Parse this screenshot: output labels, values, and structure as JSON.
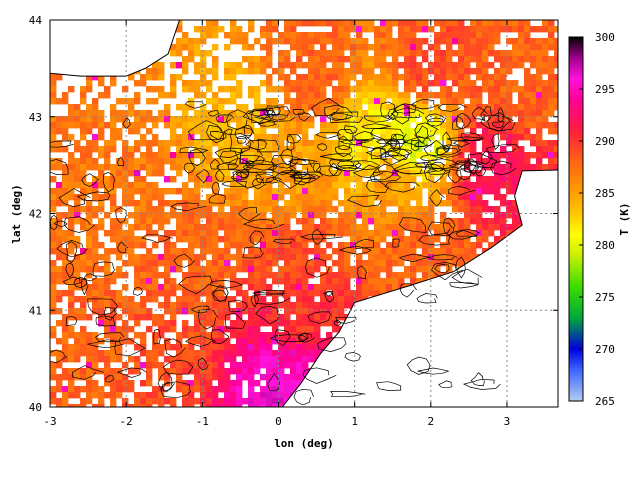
{
  "chart_data": {
    "type": "heatmap",
    "title": "",
    "xlabel": "lon (deg)",
    "ylabel": "lat (deg)",
    "xlim": [
      -3,
      3.67
    ],
    "ylim": [
      40,
      44
    ],
    "xticks": [
      -3,
      -2,
      -1,
      0,
      1,
      2,
      3
    ],
    "yticks": [
      40,
      41,
      42,
      43,
      44
    ],
    "grid": true,
    "overlay": "black topographic contour lines",
    "missing_color": "#ffffff",
    "colorbar": {
      "label": "T (K)",
      "min": 265,
      "max": 300,
      "ticks": [
        265,
        270,
        275,
        280,
        285,
        290,
        295,
        300
      ],
      "stops": [
        {
          "value": 265,
          "color": "#b4cdf0"
        },
        {
          "value": 268,
          "color": "#3c64ff"
        },
        {
          "value": 270,
          "color": "#0000dc"
        },
        {
          "value": 273,
          "color": "#00aa3c"
        },
        {
          "value": 276,
          "color": "#3cdc00"
        },
        {
          "value": 279,
          "color": "#c8f000"
        },
        {
          "value": 281,
          "color": "#ffff00"
        },
        {
          "value": 283,
          "color": "#ffc800"
        },
        {
          "value": 285,
          "color": "#ffa000"
        },
        {
          "value": 288,
          "color": "#ff6414"
        },
        {
          "value": 291,
          "color": "#ff1e3c"
        },
        {
          "value": 294,
          "color": "#ff0096"
        },
        {
          "value": 296,
          "color": "#ff14dc"
        },
        {
          "value": 298,
          "color": "#a0008c"
        },
        {
          "value": 300,
          "color": "#000000"
        }
      ]
    },
    "coastline": [
      [
        -3,
        43.45
      ],
      [
        -2.6,
        43.42
      ],
      [
        -2.0,
        43.42
      ],
      [
        -1.75,
        43.5
      ],
      [
        -1.45,
        43.65
      ],
      [
        -1.3,
        44.0
      ]
    ],
    "sea_polygon": [
      [
        -3,
        43.45
      ],
      [
        -2.6,
        43.42
      ],
      [
        -2.0,
        43.42
      ],
      [
        -1.75,
        43.5
      ],
      [
        -1.45,
        43.65
      ],
      [
        -1.3,
        44.0
      ],
      [
        -3,
        44.0
      ]
    ],
    "mediterranean_coast": [
      [
        3.67,
        42.45
      ],
      [
        3.2,
        42.44
      ],
      [
        3.1,
        42.18
      ],
      [
        3.2,
        41.88
      ],
      [
        2.8,
        41.65
      ],
      [
        2.3,
        41.4
      ],
      [
        1.7,
        41.25
      ],
      [
        1.0,
        41.08
      ],
      [
        0.8,
        40.78
      ],
      [
        0.55,
        40.55
      ],
      [
        0.3,
        40.25
      ],
      [
        0.05,
        40.0
      ]
    ],
    "mediterranean_polygon": [
      [
        3.67,
        42.45
      ],
      [
        3.2,
        42.44
      ],
      [
        3.1,
        42.18
      ],
      [
        3.2,
        41.88
      ],
      [
        2.8,
        41.65
      ],
      [
        2.3,
        41.4
      ],
      [
        1.7,
        41.25
      ],
      [
        1.0,
        41.08
      ],
      [
        0.8,
        40.78
      ],
      [
        0.55,
        40.55
      ],
      [
        0.3,
        40.25
      ],
      [
        0.05,
        40.0
      ],
      [
        3.67,
        40.0
      ]
    ],
    "temperature_anchors": [
      {
        "lon": 0.5,
        "lat": 43.5,
        "T": 288
      },
      {
        "lon": 2.0,
        "lat": 43.5,
        "T": 289
      },
      {
        "lon": 3.2,
        "lat": 43.3,
        "T": 288
      },
      {
        "lon": 1.2,
        "lat": 42.75,
        "T": 282
      },
      {
        "lon": 1.8,
        "lat": 42.75,
        "T": 280
      },
      {
        "lon": -0.5,
        "lat": 42.85,
        "T": 284
      },
      {
        "lon": 0.2,
        "lat": 42.3,
        "T": 285
      },
      {
        "lon": 1.5,
        "lat": 42.3,
        "T": 285
      },
      {
        "lon": 2.8,
        "lat": 42.5,
        "T": 292
      },
      {
        "lon": -2.5,
        "lat": 42.8,
        "T": 287
      },
      {
        "lon": -2.2,
        "lat": 42.0,
        "T": 287
      },
      {
        "lon": -1.2,
        "lat": 41.5,
        "T": 288
      },
      {
        "lon": 0.3,
        "lat": 41.7,
        "T": 289
      },
      {
        "lon": 1.8,
        "lat": 41.6,
        "T": 288
      },
      {
        "lon": 0.4,
        "lat": 40.9,
        "T": 290
      },
      {
        "lon": -2.5,
        "lat": 40.6,
        "T": 288
      },
      {
        "lon": -1.5,
        "lat": 40.5,
        "T": 289
      },
      {
        "lon": 0.4,
        "lat": 40.35,
        "T": 295
      },
      {
        "lon": 0.0,
        "lat": 40.1,
        "T": 296
      }
    ]
  }
}
